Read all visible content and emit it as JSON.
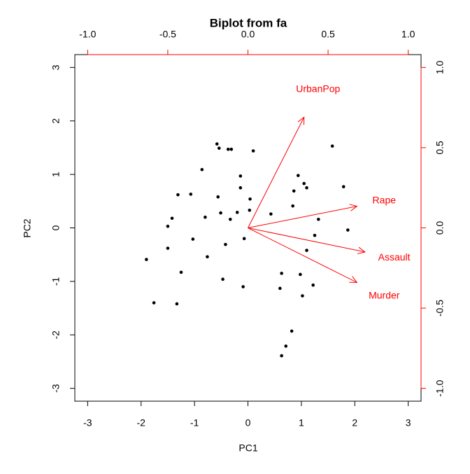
{
  "chart_data": {
    "type": "biplot",
    "title": "Biplot from fa",
    "x_label": "PC1",
    "y_label": "PC2",
    "xlim": [
      -3.24,
      3.24
    ],
    "ylim": [
      -3.24,
      3.24
    ],
    "xticks": [
      -3,
      -2,
      -1,
      0,
      1,
      2,
      3
    ],
    "yticks": [
      -3,
      -2,
      -1,
      0,
      1,
      2,
      3
    ],
    "x2lim": [
      -1.08,
      1.08
    ],
    "y2lim": [
      -1.08,
      1.08
    ],
    "x2ticks": [
      {
        "value": -1,
        "label": "-1.0"
      },
      {
        "value": -0.5,
        "label": "-0.5"
      },
      {
        "value": 0,
        "label": "0.0"
      },
      {
        "value": 0.5,
        "label": "0.5"
      },
      {
        "value": 1,
        "label": "1.0"
      }
    ],
    "y2ticks": [
      {
        "value": -1,
        "label": "-1.0"
      },
      {
        "value": -0.5,
        "label": "-0.5"
      },
      {
        "value": 0,
        "label": "0.0"
      },
      {
        "value": 0.5,
        "label": "0.5"
      },
      {
        "value": 1,
        "label": "1.0"
      }
    ],
    "point_color": "#000000",
    "loading_color": "#ff0000",
    "x": [
      -0.58,
      -0.54,
      -0.37,
      -0.31,
      0.1,
      1.58,
      -0.86,
      -0.14,
      0.94,
      1.05,
      1.1,
      -0.14,
      -0.56,
      0.86,
      -1.31,
      -1.07,
      1.79,
      0.04,
      0.84,
      -0.8,
      -0.51,
      -0.2,
      -0.33,
      0.43,
      0.03,
      1.32,
      -1.42,
      -1.5,
      1.87,
      1.25,
      -1.03,
      -0.07,
      -1.5,
      -0.42,
      1.1,
      -1.9,
      -0.76,
      -1.25,
      0.63,
      0.98,
      -0.47,
      1.22,
      -0.09,
      0.6,
      1.02,
      -1.76,
      -1.33,
      0.82,
      0.71,
      0.63
    ],
    "y": [
      1.57,
      1.49,
      1.47,
      1.47,
      1.44,
      1.53,
      1.09,
      0.97,
      0.98,
      0.83,
      0.75,
      0.75,
      0.58,
      0.69,
      0.62,
      0.63,
      0.77,
      0.54,
      0.41,
      0.2,
      0.28,
      0.29,
      0.16,
      0.26,
      0.33,
      0.16,
      0.18,
      0.03,
      -0.04,
      -0.14,
      -0.21,
      -0.2,
      -0.38,
      -0.31,
      -0.42,
      -0.59,
      -0.54,
      -0.83,
      -0.85,
      -0.87,
      -0.96,
      -1.07,
      -1.1,
      -1.13,
      -1.27,
      -1.4,
      -1.42,
      -1.93,
      -2.21,
      -2.39
    ],
    "loadings": [
      {
        "name": "UrbanPop",
        "x": 0.35,
        "y": 0.69
      },
      {
        "name": "Rape",
        "x": 0.68,
        "y": 0.135
      },
      {
        "name": "Assault",
        "x": 0.73,
        "y": -0.15
      },
      {
        "name": "Murder",
        "x": 0.68,
        "y": -0.34
      }
    ]
  }
}
